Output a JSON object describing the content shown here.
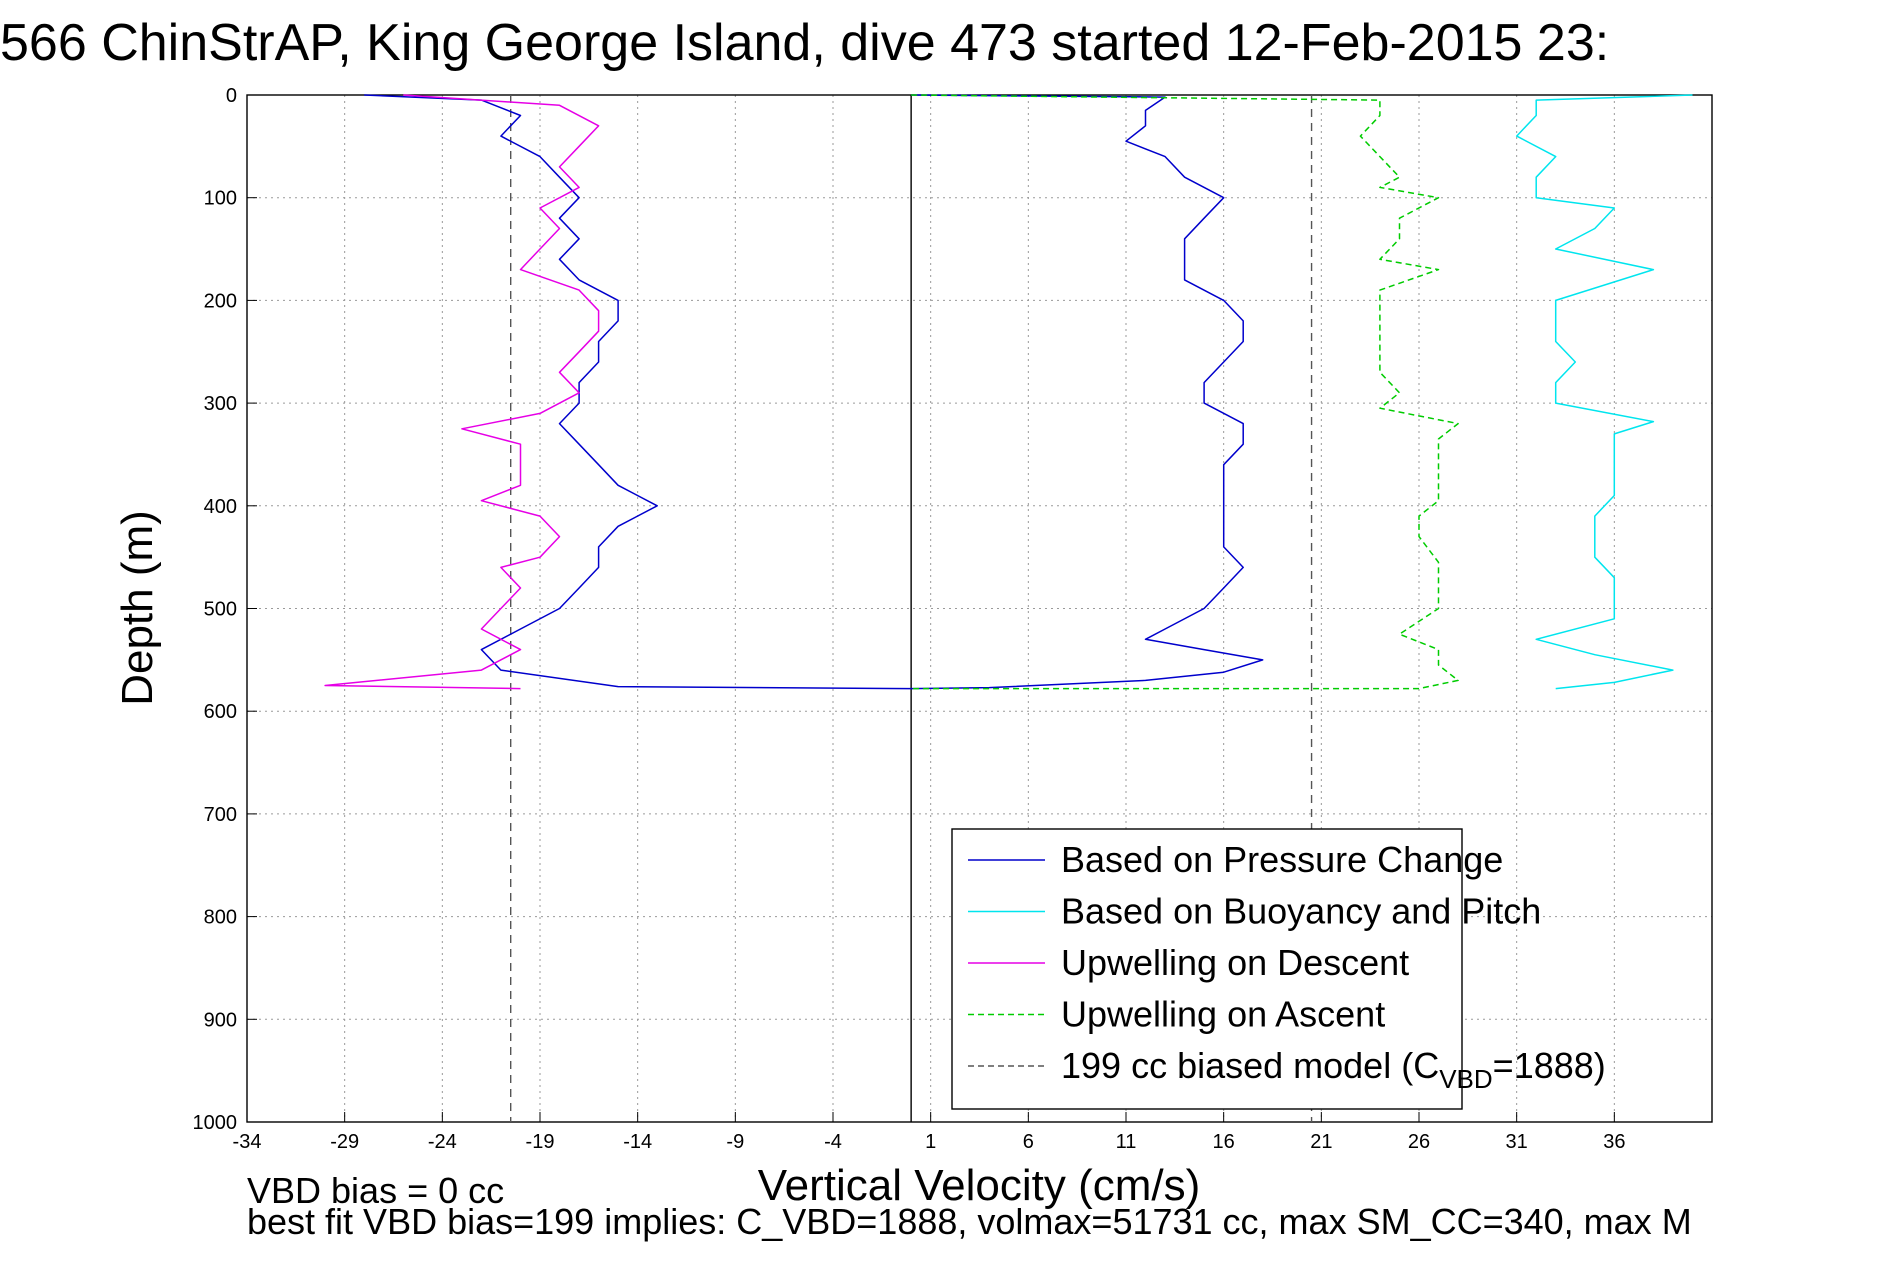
{
  "chart_data": {
    "type": "line",
    "title": "566 ChinStrAP, King George Island, dive 473 started 12-Feb-2015 23:",
    "xlabel": "Vertical Velocity (cm/s)",
    "ylabel": "Depth (m)",
    "xlim": [
      -34,
      41
    ],
    "ylim": [
      0,
      1000
    ],
    "y_reversed": true,
    "grid": true,
    "x_ticks": [
      -34,
      -29,
      -24,
      -19,
      -14,
      -9,
      -4,
      1,
      6,
      11,
      16,
      21,
      26,
      31,
      36
    ],
    "y_ticks": [
      0,
      100,
      200,
      300,
      400,
      500,
      600,
      700,
      800,
      900,
      1000
    ],
    "legend_position": "bottom-right",
    "legend": [
      {
        "label": "Based on Pressure Change",
        "color": "#0000cc",
        "style": "solid"
      },
      {
        "label": "Based on Buoyancy and Pitch",
        "color": "#00e5ee",
        "style": "solid"
      },
      {
        "label": "Upwelling on Descent",
        "color": "#e600e6",
        "style": "solid"
      },
      {
        "label": "Upwelling on Ascent",
        "color": "#00cc00",
        "style": "dashed"
      },
      {
        "label": "199 cc biased model (C",
        "sub": "VBD",
        "label_end": "=1888)",
        "color": "#555555",
        "style": "dashed"
      }
    ],
    "vertical_lines": [
      {
        "x": -20.5,
        "style": "dashed",
        "color": "#555555"
      },
      {
        "x": 0,
        "style": "solid",
        "color": "#000000"
      },
      {
        "x": 20.5,
        "style": "dashed",
        "color": "#555555"
      }
    ],
    "series": [
      {
        "key": "pressure_descent",
        "color": "#0000cc",
        "dash": false,
        "points": [
          [
            -28,
            0
          ],
          [
            -22,
            5
          ],
          [
            -20,
            20
          ],
          [
            -21,
            40
          ],
          [
            -19,
            60
          ],
          [
            -18,
            80
          ],
          [
            -17,
            100
          ],
          [
            -18,
            120
          ],
          [
            -17,
            140
          ],
          [
            -18,
            160
          ],
          [
            -17,
            180
          ],
          [
            -15,
            200
          ],
          [
            -15,
            220
          ],
          [
            -16,
            240
          ],
          [
            -16,
            260
          ],
          [
            -17,
            280
          ],
          [
            -17,
            300
          ],
          [
            -18,
            320
          ],
          [
            -17,
            340
          ],
          [
            -16,
            360
          ],
          [
            -15,
            380
          ],
          [
            -13,
            400
          ],
          [
            -15,
            420
          ],
          [
            -16,
            440
          ],
          [
            -16,
            460
          ],
          [
            -17,
            480
          ],
          [
            -18,
            500
          ],
          [
            -20,
            520
          ],
          [
            -22,
            540
          ],
          [
            -21,
            560
          ],
          [
            -15,
            576
          ],
          [
            0,
            578
          ]
        ]
      },
      {
        "key": "pressure_ascent",
        "color": "#0000cc",
        "dash": false,
        "points": [
          [
            0,
            0
          ],
          [
            13,
            2
          ],
          [
            12,
            15
          ],
          [
            12,
            30
          ],
          [
            11,
            45
          ],
          [
            13,
            60
          ],
          [
            14,
            80
          ],
          [
            16,
            100
          ],
          [
            15,
            120
          ],
          [
            14,
            140
          ],
          [
            14,
            160
          ],
          [
            14,
            180
          ],
          [
            16,
            200
          ],
          [
            17,
            220
          ],
          [
            17,
            240
          ],
          [
            16,
            260
          ],
          [
            15,
            280
          ],
          [
            15,
            300
          ],
          [
            17,
            320
          ],
          [
            17,
            340
          ],
          [
            16,
            360
          ],
          [
            16,
            380
          ],
          [
            16,
            400
          ],
          [
            16,
            420
          ],
          [
            16,
            440
          ],
          [
            17,
            460
          ],
          [
            16,
            480
          ],
          [
            15,
            500
          ],
          [
            13,
            520
          ],
          [
            12,
            530
          ],
          [
            15,
            540
          ],
          [
            18,
            550
          ],
          [
            16,
            562
          ],
          [
            12,
            570
          ],
          [
            4,
            577
          ],
          [
            0,
            578
          ]
        ]
      },
      {
        "key": "buoyancy_ascent",
        "color": "#00e5ee",
        "dash": false,
        "points": [
          [
            40,
            0
          ],
          [
            32,
            5
          ],
          [
            32,
            20
          ],
          [
            31,
            40
          ],
          [
            33,
            60
          ],
          [
            32,
            80
          ],
          [
            32,
            100
          ],
          [
            36,
            110
          ],
          [
            35,
            130
          ],
          [
            33,
            150
          ],
          [
            38,
            170
          ],
          [
            33,
            200
          ],
          [
            33,
            220
          ],
          [
            33,
            240
          ],
          [
            34,
            260
          ],
          [
            33,
            280
          ],
          [
            33,
            300
          ],
          [
            38,
            318
          ],
          [
            36,
            330
          ],
          [
            36,
            350
          ],
          [
            36,
            370
          ],
          [
            36,
            390
          ],
          [
            35,
            410
          ],
          [
            35,
            430
          ],
          [
            35,
            450
          ],
          [
            36,
            470
          ],
          [
            36,
            490
          ],
          [
            36,
            510
          ],
          [
            32,
            530
          ],
          [
            35,
            545
          ],
          [
            39,
            560
          ],
          [
            36,
            572
          ],
          [
            33,
            578
          ]
        ]
      },
      {
        "key": "upwelling_descent",
        "color": "#e600e6",
        "dash": false,
        "points": [
          [
            -26,
            0
          ],
          [
            -18,
            10
          ],
          [
            -16,
            30
          ],
          [
            -17,
            50
          ],
          [
            -18,
            70
          ],
          [
            -17,
            90
          ],
          [
            -19,
            110
          ],
          [
            -18,
            130
          ],
          [
            -19,
            150
          ],
          [
            -20,
            170
          ],
          [
            -17,
            190
          ],
          [
            -16,
            210
          ],
          [
            -16,
            230
          ],
          [
            -17,
            250
          ],
          [
            -18,
            270
          ],
          [
            -17,
            290
          ],
          [
            -19,
            310
          ],
          [
            -23,
            325
          ],
          [
            -20,
            340
          ],
          [
            -20,
            360
          ],
          [
            -20,
            380
          ],
          [
            -22,
            395
          ],
          [
            -19,
            410
          ],
          [
            -18,
            430
          ],
          [
            -19,
            450
          ],
          [
            -21,
            460
          ],
          [
            -20,
            480
          ],
          [
            -21,
            500
          ],
          [
            -22,
            520
          ],
          [
            -20,
            540
          ],
          [
            -22,
            560
          ],
          [
            -30,
            575
          ],
          [
            -20,
            578
          ]
        ]
      },
      {
        "key": "upwelling_ascent",
        "color": "#00cc00",
        "dash": true,
        "points": [
          [
            0,
            0
          ],
          [
            24,
            5
          ],
          [
            24,
            20
          ],
          [
            23,
            40
          ],
          [
            24,
            60
          ],
          [
            25,
            80
          ],
          [
            24,
            90
          ],
          [
            27,
            100
          ],
          [
            25,
            120
          ],
          [
            25,
            140
          ],
          [
            24,
            160
          ],
          [
            27,
            170
          ],
          [
            24,
            190
          ],
          [
            24,
            210
          ],
          [
            24,
            230
          ],
          [
            24,
            250
          ],
          [
            24,
            270
          ],
          [
            25,
            290
          ],
          [
            24,
            305
          ],
          [
            28,
            320
          ],
          [
            27,
            335
          ],
          [
            27,
            350
          ],
          [
            27,
            370
          ],
          [
            27,
            395
          ],
          [
            26,
            410
          ],
          [
            26,
            430
          ],
          [
            27,
            455
          ],
          [
            27,
            480
          ],
          [
            27,
            500
          ],
          [
            25,
            525
          ],
          [
            27,
            540
          ],
          [
            27,
            555
          ],
          [
            28,
            570
          ],
          [
            26,
            578
          ],
          [
            0,
            578
          ]
        ]
      }
    ]
  },
  "footer": {
    "line1": "VBD bias = 0 cc",
    "line2": "best fit VBD bias=199 implies: C_VBD=1888, volmax=51731 cc, max SM_CC=340, max M"
  }
}
